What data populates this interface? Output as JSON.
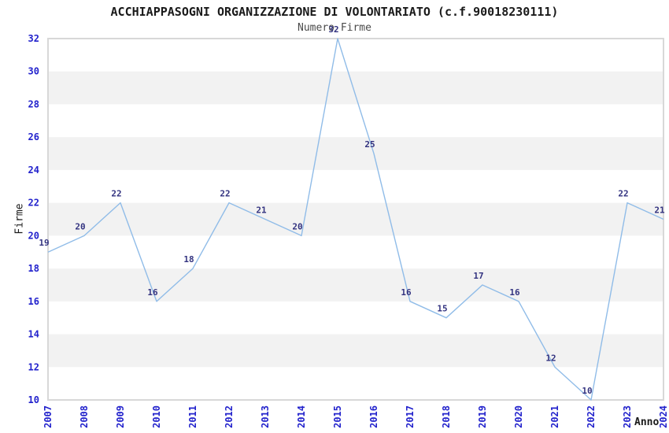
{
  "title": "ACCHIAPPASOGNI ORGANIZZAZIONE DI VOLONTARIATO (c.f.90018230111)",
  "subtitle": "Numero Firme",
  "chart_data": {
    "type": "line",
    "x": [
      2007,
      2008,
      2009,
      2010,
      2011,
      2012,
      2013,
      2014,
      2015,
      2016,
      2017,
      2018,
      2019,
      2020,
      2021,
      2022,
      2023,
      2024
    ],
    "values": [
      19,
      20,
      22,
      16,
      18,
      22,
      21,
      20,
      32,
      25,
      16,
      15,
      17,
      16,
      12,
      10,
      22,
      21
    ],
    "title": "ACCHIAPPASOGNI ORGANIZZAZIONE DI VOLONTARIATO (c.f.90018230111)",
    "subtitle": "Numero Firme",
    "xlabel": "Anno",
    "ylabel": "Firme",
    "ylim": [
      10,
      32
    ],
    "ytick_step": 2,
    "point_labels_shown": true,
    "legend": "none",
    "grid": "alternating horizontal bands every 2 units",
    "colors": {
      "line": "#90BCE8",
      "point_label": "#333380",
      "tick_label": "#2222CC",
      "band": "#F2F2F2",
      "plot_border": "#D8D8D8",
      "title_text": "#1A1A1A",
      "subtitle_text": "#4A4A4A",
      "axis_title_text": "#1A1A1A"
    }
  }
}
